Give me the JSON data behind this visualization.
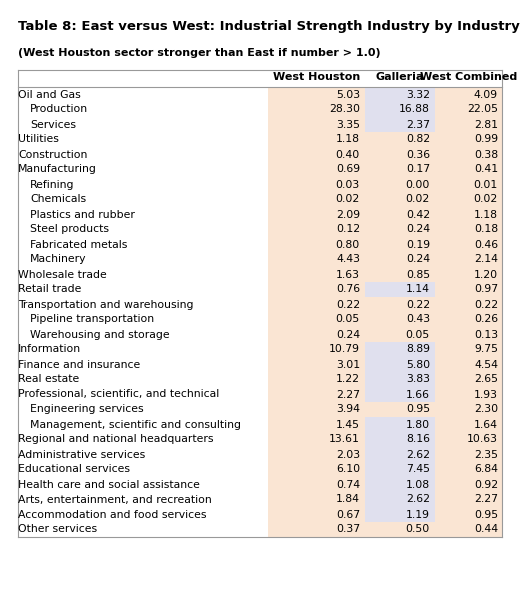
{
  "title": "Table 8: East versus West: Industrial Strength Industry by Industry",
  "subtitle": "(West Houston sector stronger than East if number > 1.0)",
  "columns": [
    "West Houston",
    "Galleria",
    "West Combined"
  ],
  "rows": [
    {
      "label": "Oil and Gas",
      "indent": 0,
      "values": [
        5.03,
        3.32,
        4.09
      ]
    },
    {
      "label": "Production",
      "indent": 1,
      "values": [
        28.3,
        16.88,
        22.05
      ]
    },
    {
      "label": "Services",
      "indent": 1,
      "values": [
        3.35,
        2.37,
        2.81
      ]
    },
    {
      "label": "Utilities",
      "indent": 0,
      "values": [
        1.18,
        0.82,
        0.99
      ]
    },
    {
      "label": "Construction",
      "indent": 0,
      "values": [
        0.4,
        0.36,
        0.38
      ]
    },
    {
      "label": "Manufacturing",
      "indent": 0,
      "values": [
        0.69,
        0.17,
        0.41
      ]
    },
    {
      "label": "Refining",
      "indent": 1,
      "values": [
        0.03,
        0.0,
        0.01
      ]
    },
    {
      "label": "Chemicals",
      "indent": 1,
      "values": [
        0.02,
        0.02,
        0.02
      ]
    },
    {
      "label": "Plastics and rubber",
      "indent": 1,
      "values": [
        2.09,
        0.42,
        1.18
      ]
    },
    {
      "label": "Steel products",
      "indent": 1,
      "values": [
        0.12,
        0.24,
        0.18
      ]
    },
    {
      "label": "Fabricated metals",
      "indent": 1,
      "values": [
        0.8,
        0.19,
        0.46
      ]
    },
    {
      "label": "Machinery",
      "indent": 1,
      "values": [
        4.43,
        0.24,
        2.14
      ]
    },
    {
      "label": "Wholesale trade",
      "indent": 0,
      "values": [
        1.63,
        0.85,
        1.2
      ]
    },
    {
      "label": "Retail trade",
      "indent": 0,
      "values": [
        0.76,
        1.14,
        0.97
      ]
    },
    {
      "label": "Transportation and warehousing",
      "indent": 0,
      "values": [
        0.22,
        0.22,
        0.22
      ]
    },
    {
      "label": "Pipeline transportation",
      "indent": 1,
      "values": [
        0.05,
        0.43,
        0.26
      ]
    },
    {
      "label": "Warehousing and storage",
      "indent": 1,
      "values": [
        0.24,
        0.05,
        0.13
      ]
    },
    {
      "label": "Information",
      "indent": 0,
      "values": [
        10.79,
        8.89,
        9.75
      ]
    },
    {
      "label": "Finance and insurance",
      "indent": 0,
      "values": [
        3.01,
        5.8,
        4.54
      ]
    },
    {
      "label": "Real estate",
      "indent": 0,
      "values": [
        1.22,
        3.83,
        2.65
      ]
    },
    {
      "label": "Professional, scientific, and technical",
      "indent": 0,
      "values": [
        2.27,
        1.66,
        1.93
      ]
    },
    {
      "label": "Engineering services",
      "indent": 1,
      "values": [
        3.94,
        0.95,
        2.3
      ]
    },
    {
      "label": "Management, scientific and consulting",
      "indent": 1,
      "values": [
        1.45,
        1.8,
        1.64
      ]
    },
    {
      "label": "Regional and national headquarters",
      "indent": 0,
      "values": [
        13.61,
        8.16,
        10.63
      ]
    },
    {
      "label": "Administrative services",
      "indent": 0,
      "values": [
        2.03,
        2.62,
        2.35
      ]
    },
    {
      "label": "Educational services",
      "indent": 0,
      "values": [
        6.1,
        7.45,
        6.84
      ]
    },
    {
      "label": "Health care and social assistance",
      "indent": 0,
      "values": [
        0.74,
        1.08,
        0.92
      ]
    },
    {
      "label": "Arts, entertainment, and recreation",
      "indent": 0,
      "values": [
        1.84,
        2.62,
        2.27
      ]
    },
    {
      "label": "Accommodation and food services",
      "indent": 0,
      "values": [
        0.67,
        1.19,
        0.95
      ]
    },
    {
      "label": "Other services",
      "indent": 0,
      "values": [
        0.37,
        0.5,
        0.44
      ]
    }
  ],
  "color_orange": "#FAE5D3",
  "color_lavender": "#E0E0EE",
  "background": "#FFFFFF",
  "title_fontsize": 9.5,
  "subtitle_fontsize": 8.0,
  "header_fontsize": 8.0,
  "data_fontsize": 7.8
}
